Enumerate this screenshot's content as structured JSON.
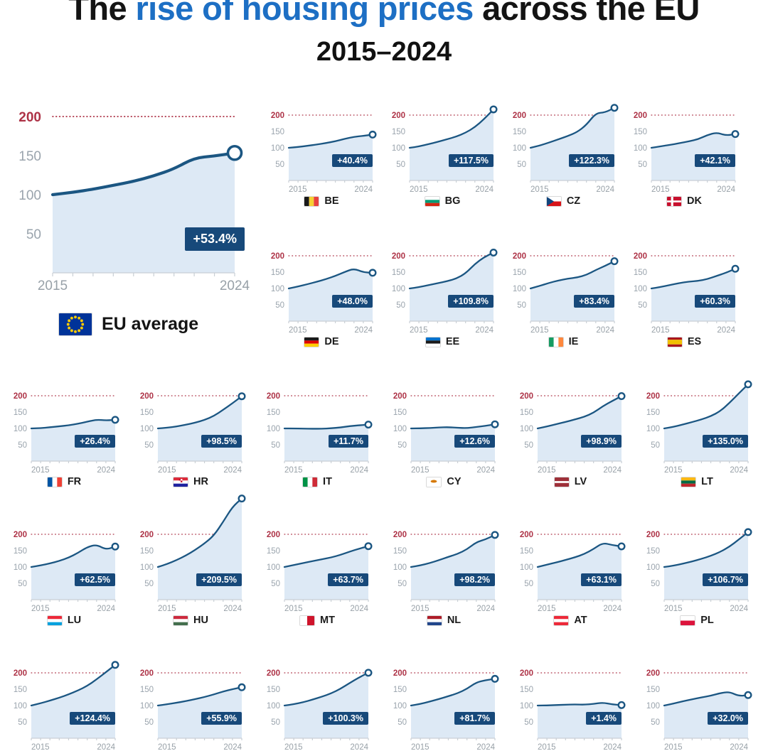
{
  "header": {
    "title_prefix": "The ",
    "title_highlight": "rise of housing prices",
    "title_suffix": " across the EU",
    "subtitle": "2015–2024"
  },
  "axes": {
    "y_ticks": [
      "200",
      "150",
      "100",
      "50"
    ],
    "x_start": "2015",
    "x_end": "2024"
  },
  "colors": {
    "line": "#1b5682",
    "area": "#dde9f5",
    "badge_bg": "#17497a",
    "title_highlight": "#1d6fc4",
    "grid_red": "#ad3246",
    "tick_gray": "#9aa4ad",
    "axis": "#c9cfd5",
    "xlabel": "#98a1a8"
  },
  "chart_data": {
    "type": "line",
    "years": [
      2015,
      2016,
      2017,
      2018,
      2019,
      2020,
      2021,
      2022,
      2023,
      2024
    ],
    "ylim": [
      0,
      200
    ],
    "gridline_at": 200,
    "eu_average": {
      "label": "EU average",
      "badge": "+53.4%",
      "values": [
        100,
        103,
        107,
        112,
        117,
        124,
        133,
        147,
        149.5,
        153.4
      ],
      "flag": {
        "t": "eu",
        "c": [
          "#003399",
          "#ffcc00"
        ]
      }
    },
    "countries": [
      {
        "code": "BE",
        "badge": "+40.4%",
        "values": [
          100,
          102.5,
          106,
          110,
          114.5,
          120,
          127.5,
          133.5,
          136.5,
          140.4
        ],
        "flag": {
          "t": "v",
          "c": [
            "#1a1a1a",
            "#f5d033",
            "#e8423f"
          ]
        }
      },
      {
        "code": "BG",
        "badge": "+117.5%",
        "values": [
          100,
          104,
          111,
          118,
          126,
          134,
          146,
          163,
          188,
          217.5
        ],
        "flag": {
          "t": "h",
          "c": [
            "#ffffff",
            "#009b74",
            "#d62612"
          ]
        }
      },
      {
        "code": "CZ",
        "badge": "+122.3%",
        "values": [
          100,
          107,
          116,
          126,
          136,
          148,
          170,
          206,
          208,
          222.3
        ],
        "flag": {
          "t": "cz",
          "c": [
            "#ffffff",
            "#d7141a",
            "#11457e"
          ]
        }
      },
      {
        "code": "DK",
        "badge": "+42.1%",
        "values": [
          100,
          104.5,
          109,
          114,
          119.5,
          126,
          139,
          147,
          137.5,
          142.1
        ],
        "flag": {
          "t": "nordic",
          "c": [
            "#c8102e",
            "#ffffff"
          ]
        }
      },
      {
        "code": "DE",
        "badge": "+48.0%",
        "values": [
          100,
          106,
          113,
          120.5,
          128.5,
          138.5,
          150.5,
          161,
          149.5,
          148
        ],
        "flag": {
          "t": "h",
          "c": [
            "#1a1a1a",
            "#dd0000",
            "#ffce00"
          ]
        }
      },
      {
        "code": "EE",
        "badge": "+109.8%",
        "values": [
          100,
          104,
          110,
          116,
          122,
          130,
          146,
          175,
          196,
          209.8
        ],
        "flag": {
          "t": "h",
          "c": [
            "#0072ce",
            "#1a1a1a",
            "#ffffff"
          ]
        }
      },
      {
        "code": "IE",
        "badge": "+83.4%",
        "values": [
          100,
          108,
          117,
          124.5,
          130,
          133.5,
          141.5,
          156.5,
          169,
          183.4
        ],
        "flag": {
          "t": "v",
          "c": [
            "#169b62",
            "#ffffff",
            "#ff883e"
          ]
        }
      },
      {
        "code": "ES",
        "badge": "+60.3%",
        "values": [
          100,
          104.5,
          110.5,
          116.5,
          121,
          123,
          128.5,
          138.5,
          148,
          160.3
        ],
        "flag": {
          "t": "h",
          "c": [
            "#aa151b",
            "#f1bf00",
            "#aa151b"
          ],
          "w": [
            1,
            2,
            1
          ]
        }
      },
      {
        "code": "FR",
        "badge": "+26.4%",
        "values": [
          100,
          101,
          103.5,
          106.5,
          109.5,
          114.5,
          120.5,
          127,
          124.5,
          126.4
        ],
        "flag": {
          "t": "v",
          "c": [
            "#0055a4",
            "#ffffff",
            "#ef4135"
          ]
        }
      },
      {
        "code": "HR",
        "badge": "+98.5%",
        "values": [
          100,
          102,
          106,
          111.5,
          117.5,
          126,
          138,
          157,
          177,
          198.5
        ],
        "flag": {
          "t": "h",
          "c": [
            "#dd2c3b",
            "#ffffff",
            "#1f23a0"
          ],
          "emb": true
        }
      },
      {
        "code": "IT",
        "badge": "+11.7%",
        "values": [
          100,
          100,
          99.5,
          99,
          99,
          100.5,
          103,
          107,
          109.5,
          111.7
        ],
        "flag": {
          "t": "v",
          "c": [
            "#009246",
            "#ffffff",
            "#ce2b37"
          ]
        }
      },
      {
        "code": "CY",
        "badge": "+12.6%",
        "values": [
          100,
          100.5,
          101.5,
          103,
          104,
          102,
          101,
          104.5,
          108,
          112.6
        ],
        "flag": {
          "t": "cy",
          "c": [
            "#ffffff",
            "#d57800"
          ]
        }
      },
      {
        "code": "LV",
        "badge": "+98.9%",
        "values": [
          100,
          106,
          113,
          120,
          127.5,
          135.5,
          148,
          168,
          184,
          198.9
        ],
        "flag": {
          "t": "h",
          "c": [
            "#9e3039",
            "#ffffff",
            "#9e3039"
          ],
          "w": [
            2,
            1,
            2
          ]
        }
      },
      {
        "code": "LT",
        "badge": "+135.0%",
        "values": [
          100,
          105,
          112,
          119.5,
          127.5,
          137.5,
          152.5,
          178,
          207,
          235
        ],
        "flag": {
          "t": "h",
          "c": [
            "#fdb913",
            "#006a44",
            "#c1272d"
          ]
        }
      },
      {
        "code": "LU",
        "badge": "+62.5%",
        "values": [
          100,
          105,
          111,
          118.5,
          128.5,
          143,
          161,
          168.5,
          153,
          162.5
        ],
        "flag": {
          "t": "h",
          "c": [
            "#ed2939",
            "#ffffff",
            "#00a1de"
          ]
        }
      },
      {
        "code": "HU",
        "badge": "+209.5%",
        "values": [
          100,
          109,
          121,
          135,
          152,
          172,
          196,
          238,
          284,
          309.5
        ],
        "flag": {
          "t": "h",
          "c": [
            "#cd2a3e",
            "#ffffff",
            "#436f4d"
          ]
        }
      },
      {
        "code": "MT",
        "badge": "+63.7%",
        "values": [
          100,
          106,
          112,
          118,
          123.5,
          129,
          137,
          147,
          156,
          163.7
        ],
        "flag": {
          "t": "v",
          "c": [
            "#ffffff",
            "#cf142b"
          ]
        }
      },
      {
        "code": "NL",
        "badge": "+98.2%",
        "values": [
          100,
          105,
          112,
          121,
          131,
          140,
          154,
          176,
          184.5,
          198.2
        ],
        "flag": {
          "t": "h",
          "c": [
            "#ae1c28",
            "#ffffff",
            "#21468b"
          ]
        }
      },
      {
        "code": "AT",
        "badge": "+63.1%",
        "values": [
          100,
          107,
          114,
          121.5,
          129.5,
          139.5,
          155,
          174,
          167,
          163.1
        ],
        "flag": {
          "t": "h",
          "c": [
            "#ed2939",
            "#ffffff",
            "#ed2939"
          ]
        }
      },
      {
        "code": "PL",
        "badge": "+106.7%",
        "values": [
          100,
          104,
          110,
          117,
          125,
          134,
          146,
          162,
          184,
          206.7
        ],
        "flag": {
          "t": "h",
          "c": [
            "#ffffff",
            "#dc143c"
          ]
        }
      },
      {
        "code": "",
        "badge": "+124.4%",
        "values": [
          100,
          107,
          115,
          124,
          134,
          146,
          160,
          180,
          202,
          224.4
        ]
      },
      {
        "code": "",
        "badge": "+55.9%",
        "values": [
          100,
          104,
          108.5,
          113.5,
          119.5,
          126,
          134,
          143,
          150,
          155.9
        ]
      },
      {
        "code": "",
        "badge": "+100.3%",
        "values": [
          100,
          104,
          110,
          118,
          127,
          137,
          151,
          169,
          186,
          200.3
        ]
      },
      {
        "code": "",
        "badge": "+81.7%",
        "values": [
          100,
          105,
          112,
          120,
          128.5,
          137.5,
          151,
          171,
          177.5,
          181.7
        ]
      },
      {
        "code": "",
        "badge": "+1.4%",
        "values": [
          100,
          100.5,
          101.5,
          102.5,
          103.5,
          102.5,
          105,
          109,
          103.5,
          101.4
        ]
      },
      {
        "code": "",
        "badge": "+32.0%",
        "values": [
          100,
          106,
          113,
          119,
          125,
          130,
          138,
          142,
          129,
          132
        ]
      }
    ]
  }
}
